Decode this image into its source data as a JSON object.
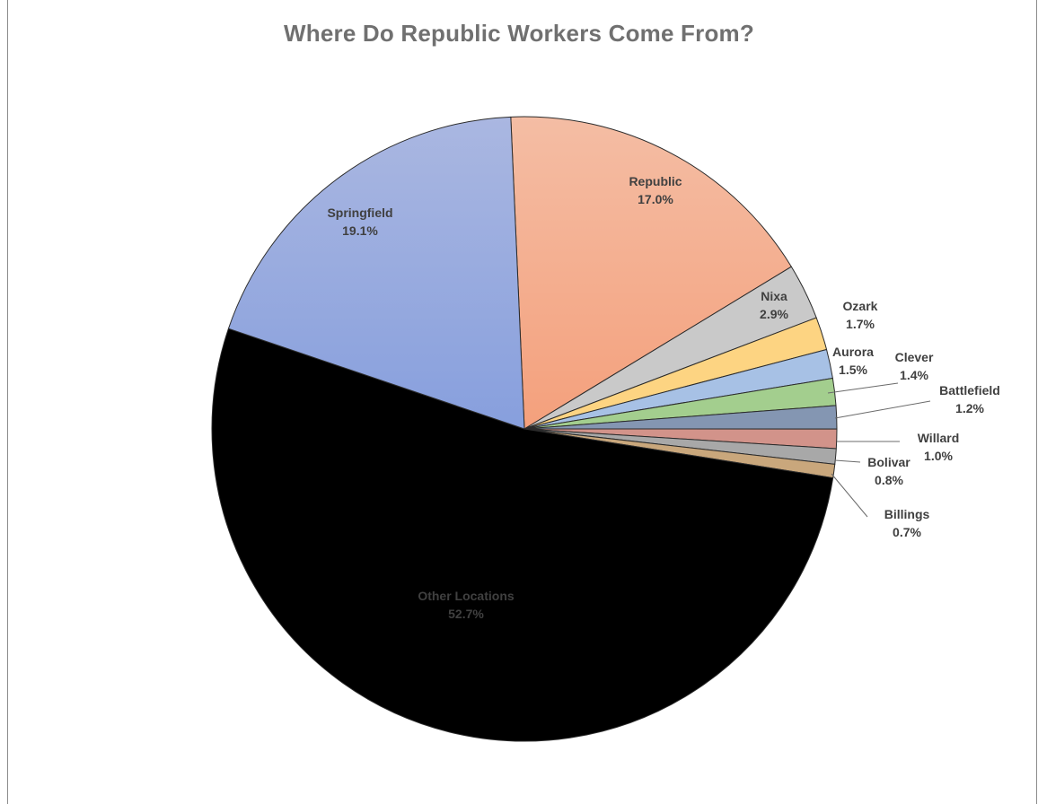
{
  "chart_data": {
    "type": "pie",
    "title": "Where Do Republic Workers Come From?",
    "slices": [
      {
        "label": "Republic",
        "value": 17.0,
        "pct_label": "17.0%",
        "color": "#F4A684"
      },
      {
        "label": "Nixa",
        "value": 2.9,
        "pct_label": "2.9%",
        "color": "#C9C9C9"
      },
      {
        "label": "Ozark",
        "value": 1.7,
        "pct_label": "1.7%",
        "color": "#FDD482"
      },
      {
        "label": "Aurora",
        "value": 1.5,
        "pct_label": "1.5%",
        "color": "#A7C1E5"
      },
      {
        "label": "Clever",
        "value": 1.4,
        "pct_label": "1.4%",
        "color": "#A3CE8E"
      },
      {
        "label": "Battlefield",
        "value": 1.2,
        "pct_label": "1.2%",
        "color": "#8496B2"
      },
      {
        "label": "Willard",
        "value": 1.0,
        "pct_label": "1.0%",
        "color": "#D2938A"
      },
      {
        "label": "Bolivar",
        "value": 0.8,
        "pct_label": "0.8%",
        "color": "#A8A8A8"
      },
      {
        "label": "Billings",
        "value": 0.7,
        "pct_label": "0.7%",
        "color": "#C9A77C"
      },
      {
        "label": "Other Locations",
        "value": 52.7,
        "pct_label": "52.7%",
        "color": "#8E9FBC"
      },
      {
        "label": "Springfield",
        "value": 19.1,
        "pct_label": "19.1%",
        "color": "#98A9DD"
      }
    ]
  }
}
